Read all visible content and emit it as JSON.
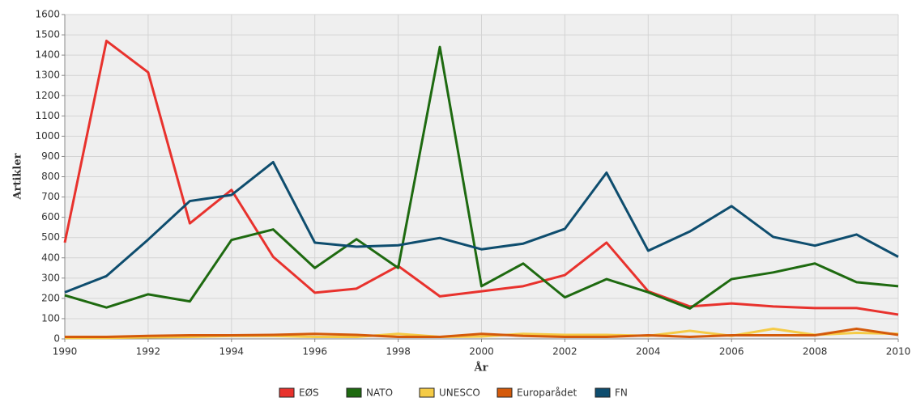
{
  "chart_data": {
    "type": "line",
    "x_label": "År",
    "y_label": "Artikler",
    "x": [
      1990,
      1991,
      1992,
      1993,
      1994,
      1995,
      1996,
      1997,
      1998,
      1999,
      2000,
      2001,
      2002,
      2003,
      2004,
      2005,
      2006,
      2007,
      2008,
      2009,
      2010
    ],
    "xlim": [
      1990,
      2010
    ],
    "xticks": [
      1990,
      1992,
      1994,
      1996,
      1998,
      2000,
      2002,
      2004,
      2006,
      2008,
      2010
    ],
    "ylim": [
      0,
      1600
    ],
    "yticks": [
      0,
      100,
      200,
      300,
      400,
      500,
      600,
      700,
      800,
      900,
      1000,
      1100,
      1200,
      1300,
      1400,
      1500,
      1600
    ],
    "grid": true,
    "legend": "bottom",
    "series": [
      {
        "name": "EØS",
        "color": "#e8322d",
        "values": [
          475,
          1470,
          1315,
          570,
          735,
          405,
          228,
          248,
          360,
          210,
          235,
          260,
          315,
          475,
          235,
          160,
          175,
          160,
          152,
          152,
          120
        ]
      },
      {
        "name": "NATO",
        "color": "#1e6a10",
        "values": [
          215,
          155,
          220,
          185,
          488,
          540,
          350,
          492,
          350,
          1440,
          260,
          372,
          205,
          295,
          230,
          150,
          295,
          328,
          372,
          280,
          260
        ]
      },
      {
        "name": "UNESCO",
        "color": "#f5cb46",
        "values": [
          5,
          5,
          8,
          10,
          15,
          15,
          10,
          10,
          25,
          10,
          12,
          25,
          20,
          20,
          15,
          40,
          15,
          50,
          20,
          30,
          25
        ]
      },
      {
        "name": "Europarådet",
        "color": "#d45a0b",
        "values": [
          10,
          10,
          15,
          18,
          18,
          20,
          25,
          20,
          10,
          10,
          25,
          15,
          10,
          10,
          18,
          10,
          18,
          18,
          18,
          50,
          20
        ]
      },
      {
        "name": "FN",
        "color": "#0e4d6e",
        "values": [
          230,
          310,
          490,
          680,
          710,
          872,
          475,
          455,
          462,
          498,
          442,
          470,
          543,
          820,
          435,
          530,
          655,
          503,
          460,
          515,
          405
        ]
      }
    ]
  }
}
